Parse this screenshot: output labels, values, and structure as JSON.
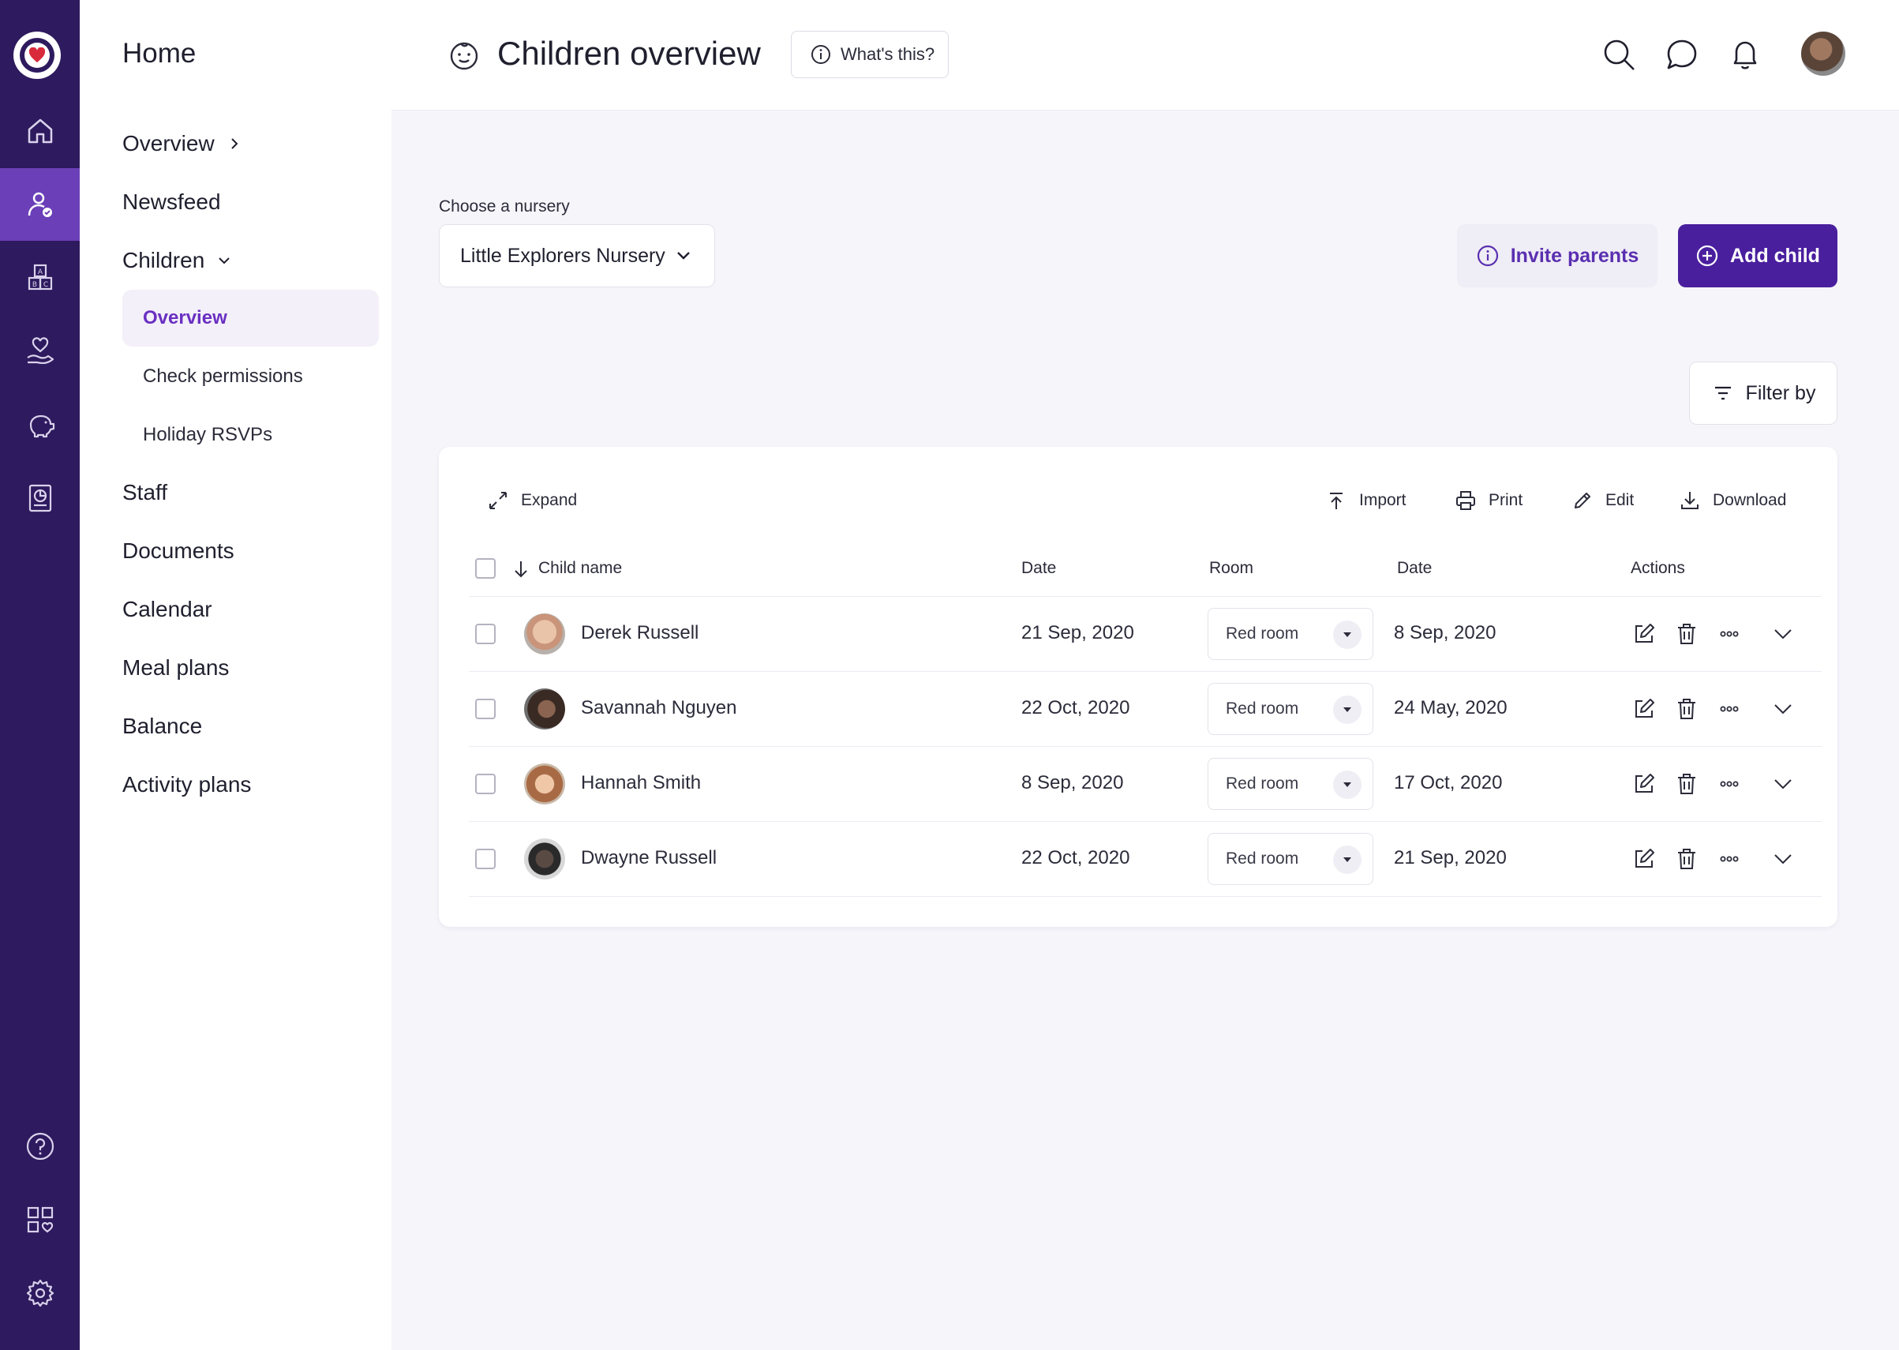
{
  "colors": {
    "rail_bg": "#2e1a5e",
    "rail_active": "#6b3fb8",
    "accent": "#4a1f9e",
    "accent_text": "#6a2fc2"
  },
  "rail": {
    "items": [
      "home-icon",
      "child-check-icon",
      "abc-blocks-icon",
      "heart-hand-icon",
      "piggy-bank-icon",
      "report-icon",
      "help-icon",
      "apps-heart-icon",
      "settings-icon"
    ],
    "active": "child-check-icon"
  },
  "subnav": {
    "title": "Home",
    "items": [
      {
        "label": "Overview"
      },
      {
        "label": "Newsfeed"
      },
      {
        "label": "Children"
      },
      {
        "label": "Staff"
      },
      {
        "label": "Documents"
      },
      {
        "label": "Calendar"
      },
      {
        "label": "Meal plans"
      },
      {
        "label": "Balance"
      },
      {
        "label": "Activity plans"
      }
    ],
    "children_sub": [
      {
        "label": "Overview",
        "active": true
      },
      {
        "label": "Check permissions"
      },
      {
        "label": "Holiday RSVPs"
      }
    ]
  },
  "header": {
    "title": "Children overview",
    "whats_this": "What's this?"
  },
  "nursery": {
    "label": "Choose a nursery",
    "selected": "Little Explorers Nursery"
  },
  "actions": {
    "invite": "Invite parents",
    "add": "Add child",
    "filter": "Filter by"
  },
  "toolbar": {
    "expand": "Expand",
    "import": "Import",
    "print": "Print",
    "edit": "Edit",
    "download": "Download"
  },
  "table": {
    "columns": [
      "Child name",
      "Date",
      "Room",
      "Date",
      "Actions"
    ],
    "rows": [
      {
        "name": "Derek Russell",
        "date1": "21 Sep, 2020",
        "room": "Red room",
        "date2": "8 Sep, 2020"
      },
      {
        "name": "Savannah Nguyen",
        "date1": "22 Oct, 2020",
        "room": "Red room",
        "date2": "24 May, 2020"
      },
      {
        "name": "Hannah Smith",
        "date1": "8 Sep, 2020",
        "room": "Red room",
        "date2": "17 Oct, 2020"
      },
      {
        "name": "Dwayne Russell",
        "date1": "22 Oct, 2020",
        "room": "Red room",
        "date2": "21 Sep, 2020"
      }
    ]
  }
}
